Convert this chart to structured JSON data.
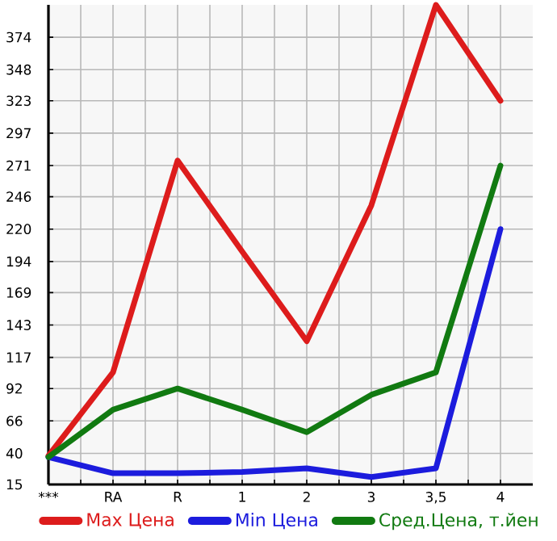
{
  "chart_data": {
    "type": "line",
    "categories": [
      "***",
      "RA",
      "R",
      "1",
      "2",
      "3",
      "3,5",
      "4"
    ],
    "series": [
      {
        "name": "Max Цена",
        "color": "#dd1c1c",
        "values": [
          38,
          105,
          275,
          202,
          130,
          239,
          400,
          323
        ]
      },
      {
        "name": "Min Цена",
        "color": "#1c1cdd",
        "values": [
          37,
          24,
          24,
          25,
          28,
          21,
          28,
          220
        ]
      },
      {
        "name": "Сред.Цена, т.йен",
        "color": "#117a11",
        "values": [
          37,
          75,
          92,
          75,
          57,
          87,
          105,
          271
        ]
      }
    ],
    "ylim": [
      15,
      400
    ],
    "yticks": [
      15,
      40,
      66,
      92,
      117,
      143,
      169,
      194,
      220,
      246,
      271,
      297,
      323,
      348,
      374
    ],
    "grid": true,
    "legend": "bottom"
  }
}
